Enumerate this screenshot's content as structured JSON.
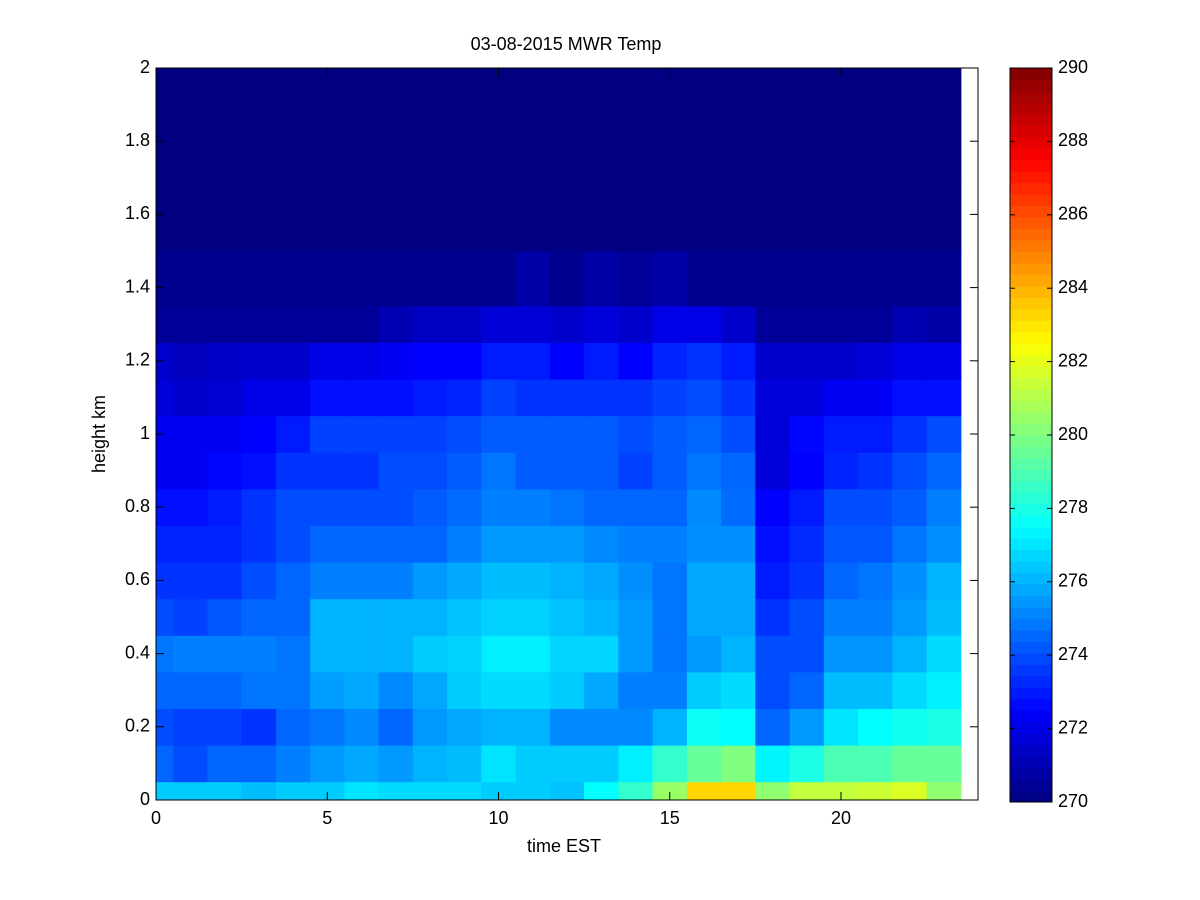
{
  "chart_data": {
    "type": "heatmap",
    "title": "03-08-2015 MWR Temp",
    "x_label": "time EST",
    "y_label": "height km",
    "x": [
      0,
      1,
      2,
      3,
      4,
      5,
      6,
      7,
      8,
      9,
      10,
      11,
      12,
      13,
      14,
      15,
      16,
      17,
      18,
      19,
      20,
      21,
      22,
      23
    ],
    "y": [
      0,
      0.1,
      0.2,
      0.3,
      0.4,
      0.5,
      0.6,
      0.7,
      0.8,
      0.9,
      1.0,
      1.1,
      1.2,
      1.3,
      1.4,
      1.6,
      1.8,
      2.0
    ],
    "z": [
      [
        276.5,
        276.5,
        276.5,
        276.2,
        276.5,
        276.5,
        277,
        276.8,
        276.8,
        276.8,
        276.5,
        276.5,
        276.3,
        277.5,
        278.5,
        280.5,
        283.3,
        283.3,
        280.3,
        281.3,
        281.3,
        281.5,
        281.8,
        280.3
      ],
      [
        274.5,
        274,
        274.5,
        274.5,
        275,
        275.5,
        275.8,
        275.5,
        276,
        276.2,
        277,
        276.5,
        276.5,
        276.5,
        277.2,
        278.5,
        279.5,
        280,
        277.3,
        278,
        279,
        279,
        279.5,
        279.5
      ],
      [
        274,
        273.8,
        273.8,
        273.5,
        274.5,
        274.8,
        275.2,
        274.5,
        275.5,
        275.8,
        276,
        276,
        275.2,
        275.2,
        275.2,
        276,
        277.7,
        277.5,
        274.5,
        275.5,
        277,
        277.5,
        277.8,
        278
      ],
      [
        274.5,
        274.5,
        274.5,
        274.8,
        274.8,
        275.6,
        275.8,
        275.2,
        275.8,
        276.5,
        276.8,
        276.8,
        276.5,
        275.8,
        275,
        275,
        276.5,
        276.8,
        274,
        274.5,
        276.2,
        276.2,
        276.8,
        277.2
      ],
      [
        274.8,
        275,
        275,
        275,
        274.8,
        276,
        276,
        276,
        276.5,
        276.6,
        277.2,
        277.2,
        276.7,
        276.7,
        275.5,
        274.8,
        275.5,
        276,
        274,
        274,
        275.4,
        275.4,
        276,
        276.8
      ],
      [
        274,
        273.8,
        274.2,
        274.5,
        274.5,
        276,
        276,
        276,
        276,
        276.3,
        276.6,
        276.6,
        276.3,
        276,
        275.5,
        274.8,
        275.8,
        275.8,
        273.5,
        274,
        275,
        275,
        275.5,
        276.2
      ],
      [
        273.5,
        273.5,
        273.5,
        274,
        274.5,
        275,
        275,
        275,
        275.5,
        275.8,
        276.2,
        276.2,
        276,
        275.8,
        275.3,
        274.8,
        275.8,
        275.8,
        273,
        273.5,
        274.5,
        274.8,
        275.3,
        276
      ],
      [
        273.2,
        273.2,
        273.2,
        273.5,
        274,
        274.5,
        274.5,
        274.5,
        274.5,
        275,
        275.5,
        275.5,
        275.5,
        275.2,
        275,
        275,
        275.3,
        275.3,
        272.8,
        273.3,
        274.2,
        274.2,
        274.8,
        275.3
      ],
      [
        272.8,
        272.8,
        273,
        273.5,
        274,
        274,
        274,
        274,
        274.3,
        274.6,
        275,
        275,
        274.8,
        274.5,
        274.5,
        274.5,
        275.2,
        274.6,
        272.5,
        273,
        274,
        274,
        274.3,
        275
      ],
      [
        272.3,
        272.3,
        272.6,
        272.8,
        273.5,
        273.5,
        273.5,
        274,
        274,
        274.3,
        274.8,
        274.3,
        274.3,
        274.3,
        273.8,
        274.3,
        274.8,
        274.5,
        271.8,
        272.5,
        273.2,
        273.5,
        274,
        274.5
      ],
      [
        272.2,
        272.3,
        272.3,
        272.5,
        273,
        273.8,
        273.8,
        273.8,
        273.8,
        274,
        274.3,
        274.3,
        274.3,
        274.3,
        274,
        274.3,
        274.5,
        274,
        271.8,
        272.6,
        273,
        273,
        273.5,
        274
      ],
      [
        271.8,
        271.5,
        271.6,
        272,
        272,
        272.8,
        272.8,
        272.8,
        273,
        273.2,
        273.8,
        273.5,
        273.5,
        273.5,
        273.5,
        273.8,
        274,
        273.5,
        271.8,
        271.8,
        272.3,
        272.3,
        272.8,
        272.8
      ],
      [
        271.5,
        271.2,
        271.4,
        271.5,
        271.5,
        272,
        272,
        272.3,
        272.5,
        272.5,
        273,
        273,
        272.5,
        273,
        272.5,
        273.2,
        273.5,
        273,
        271.5,
        271.5,
        271.5,
        271.7,
        272,
        272
      ],
      [
        270.5,
        270.5,
        270.5,
        270.5,
        270.5,
        270.5,
        270.5,
        271,
        271.3,
        271.3,
        271.7,
        271.7,
        271.5,
        271.8,
        271.5,
        272,
        272,
        271.5,
        270.5,
        270.5,
        270.5,
        270.5,
        271,
        270.8
      ],
      [
        270.3,
        270.3,
        270.3,
        270.3,
        270.3,
        270.3,
        270.3,
        270.3,
        270.3,
        270.3,
        270.3,
        270.8,
        270.3,
        270.8,
        270.5,
        270.8,
        270.3,
        270.3,
        270.3,
        270.3,
        270.3,
        270.3,
        270.3,
        270.3
      ],
      [
        270,
        270,
        270,
        270,
        270,
        270,
        270,
        270,
        270,
        270,
        270,
        270,
        270,
        270,
        270,
        270,
        270,
        270,
        270,
        270,
        270,
        270,
        270,
        270
      ],
      [
        270,
        270,
        270,
        270,
        270,
        270,
        270,
        270,
        270,
        270,
        270,
        270,
        270,
        270,
        270,
        270,
        270,
        270,
        270,
        270,
        270,
        270,
        270,
        270
      ],
      [
        270,
        270,
        270,
        270,
        270,
        270,
        270,
        270,
        270,
        270,
        270,
        270,
        270,
        270,
        270,
        270,
        270,
        270,
        270,
        270,
        270,
        270,
        270,
        270
      ]
    ],
    "xlim": [
      0,
      24
    ],
    "ylim": [
      0,
      2
    ],
    "xticks": [
      0,
      5,
      10,
      15,
      20
    ],
    "yticks": [
      0,
      0.2,
      0.4,
      0.6,
      0.8,
      1,
      1.2,
      1.4,
      1.6,
      1.8,
      2
    ],
    "colormap": "jet",
    "clim": [
      270,
      290
    ],
    "cticks": [
      270,
      272,
      274,
      276,
      278,
      280,
      282,
      284,
      286,
      288,
      290
    ]
  }
}
